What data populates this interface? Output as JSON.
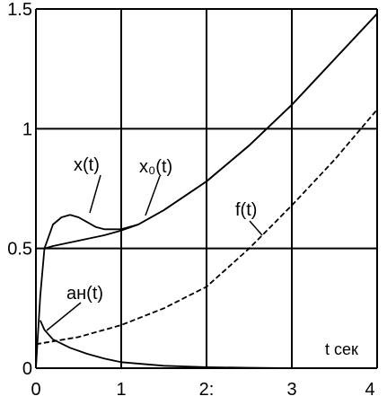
{
  "chart_data": {
    "type": "line",
    "title": "",
    "xlabel": "t сек",
    "ylabel": "",
    "xlim": [
      0,
      4
    ],
    "ylim": [
      0,
      1.5
    ],
    "grid": true,
    "legend": "none",
    "x_ticks": [
      "0",
      "1",
      "2:",
      "3",
      "4"
    ],
    "y_ticks": [
      "0",
      "0.5",
      "1",
      "1.5"
    ],
    "series": [
      {
        "name": "x(t)",
        "style": "solid",
        "x": [
          0,
          0.05,
          0.1,
          0.2,
          0.3,
          0.4,
          0.5,
          0.6,
          0.7,
          0.8,
          1.0,
          1.2,
          1.5,
          2.0,
          2.5,
          3.0,
          3.5,
          4.0
        ],
        "y": [
          0.0,
          0.3,
          0.5,
          0.6,
          0.63,
          0.64,
          0.63,
          0.61,
          0.59,
          0.58,
          0.58,
          0.6,
          0.66,
          0.78,
          0.93,
          1.1,
          1.29,
          1.48
        ]
      },
      {
        "name": "x₀(t)",
        "style": "solid",
        "x": [
          0.1,
          0.2,
          0.4,
          0.6,
          0.8,
          1.0,
          1.2,
          1.5,
          2.0,
          2.5,
          3.0,
          3.5,
          4.0
        ],
        "y": [
          0.5,
          0.51,
          0.525,
          0.54,
          0.555,
          0.575,
          0.6,
          0.66,
          0.78,
          0.93,
          1.1,
          1.29,
          1.48
        ]
      },
      {
        "name": "f(t)",
        "style": "dashed",
        "x": [
          0,
          0.5,
          1.0,
          1.5,
          2.0,
          2.5,
          3.0,
          3.5,
          4.0
        ],
        "y": [
          0.1,
          0.13,
          0.18,
          0.25,
          0.34,
          0.5,
          0.68,
          0.87,
          1.08
        ]
      },
      {
        "name": "aн(t)",
        "style": "solid",
        "x": [
          0.05,
          0.1,
          0.2,
          0.4,
          0.6,
          0.8,
          1.0,
          1.5,
          2.0,
          2.5,
          3.0,
          4.0
        ],
        "y": [
          0.2,
          0.16,
          0.12,
          0.085,
          0.06,
          0.04,
          0.025,
          0.01,
          0.004,
          0.002,
          0.0,
          0.0
        ]
      }
    ],
    "annotations": [
      {
        "text": "x(t)",
        "series": 0
      },
      {
        "text": "x₀(t)",
        "series": 1
      },
      {
        "text": "f(t)",
        "series": 2
      },
      {
        "text": "aн(t)",
        "series": 3
      }
    ]
  }
}
